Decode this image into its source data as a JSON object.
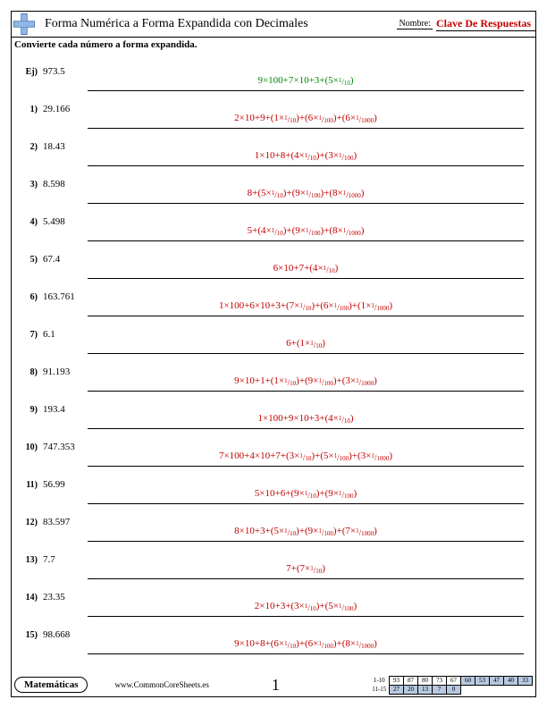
{
  "header": {
    "title": "Forma Numérica a Forma Expandida con Decimales",
    "name_label": "Nombre:",
    "answer_key": "Clave De Respuestas"
  },
  "instruction": "Convierte cada número a forma expandida.",
  "colors": {
    "example": "#008800",
    "answer": "#c00000",
    "border": "#000000",
    "shade": "#b8c8e0"
  },
  "rows": [
    {
      "label": "Ej)",
      "number": "973.5",
      "answer_html": "9×100+7×10+3+(5×<span class='frac'><span class='n'>1</span><span class='s'>/</span><span class='d'>10</span></span>)",
      "cls": "ans-example"
    },
    {
      "label": "1)",
      "number": "29.166",
      "answer_html": "2×10+9+(1×<span class='frac'><span class='n'>1</span><span class='s'>/</span><span class='d'>10</span></span>)+(6×<span class='frac'><span class='n'>1</span><span class='s'>/</span><span class='d'>100</span></span>)+(6×<span class='frac'><span class='n'>1</span><span class='s'>/</span><span class='d'>1000</span></span>)",
      "cls": "ans-red"
    },
    {
      "label": "2)",
      "number": "18.43",
      "answer_html": "1×10+8+(4×<span class='frac'><span class='n'>1</span><span class='s'>/</span><span class='d'>10</span></span>)+(3×<span class='frac'><span class='n'>1</span><span class='s'>/</span><span class='d'>100</span></span>)",
      "cls": "ans-red"
    },
    {
      "label": "3)",
      "number": "8.598",
      "answer_html": "8+(5×<span class='frac'><span class='n'>1</span><span class='s'>/</span><span class='d'>10</span></span>)+(9×<span class='frac'><span class='n'>1</span><span class='s'>/</span><span class='d'>100</span></span>)+(8×<span class='frac'><span class='n'>1</span><span class='s'>/</span><span class='d'>1000</span></span>)",
      "cls": "ans-red"
    },
    {
      "label": "4)",
      "number": "5.498",
      "answer_html": "5+(4×<span class='frac'><span class='n'>1</span><span class='s'>/</span><span class='d'>10</span></span>)+(9×<span class='frac'><span class='n'>1</span><span class='s'>/</span><span class='d'>100</span></span>)+(8×<span class='frac'><span class='n'>1</span><span class='s'>/</span><span class='d'>1000</span></span>)",
      "cls": "ans-red"
    },
    {
      "label": "5)",
      "number": "67.4",
      "answer_html": "6×10+7+(4×<span class='frac'><span class='n'>1</span><span class='s'>/</span><span class='d'>10</span></span>)",
      "cls": "ans-red"
    },
    {
      "label": "6)",
      "number": "163.761",
      "answer_html": "1×100+6×10+3+(7×<span class='frac'><span class='n'>1</span><span class='s'>/</span><span class='d'>10</span></span>)+(6×<span class='frac'><span class='n'>1</span><span class='s'>/</span><span class='d'>100</span></span>)+(1×<span class='frac'><span class='n'>1</span><span class='s'>/</span><span class='d'>1000</span></span>)",
      "cls": "ans-red"
    },
    {
      "label": "7)",
      "number": "6.1",
      "answer_html": "6+(1×<span class='frac'><span class='n'>1</span><span class='s'>/</span><span class='d'>10</span></span>)",
      "cls": "ans-red"
    },
    {
      "label": "8)",
      "number": "91.193",
      "answer_html": "9×10+1+(1×<span class='frac'><span class='n'>1</span><span class='s'>/</span><span class='d'>10</span></span>)+(9×<span class='frac'><span class='n'>1</span><span class='s'>/</span><span class='d'>100</span></span>)+(3×<span class='frac'><span class='n'>1</span><span class='s'>/</span><span class='d'>1000</span></span>)",
      "cls": "ans-red"
    },
    {
      "label": "9)",
      "number": "193.4",
      "answer_html": "1×100+9×10+3+(4×<span class='frac'><span class='n'>1</span><span class='s'>/</span><span class='d'>10</span></span>)",
      "cls": "ans-red"
    },
    {
      "label": "10)",
      "number": "747.353",
      "answer_html": "7×100+4×10+7+(3×<span class='frac'><span class='n'>1</span><span class='s'>/</span><span class='d'>10</span></span>)+(5×<span class='frac'><span class='n'>1</span><span class='s'>/</span><span class='d'>100</span></span>)+(3×<span class='frac'><span class='n'>1</span><span class='s'>/</span><span class='d'>1000</span></span>)",
      "cls": "ans-red"
    },
    {
      "label": "11)",
      "number": "56.99",
      "answer_html": "5×10+6+(9×<span class='frac'><span class='n'>1</span><span class='s'>/</span><span class='d'>10</span></span>)+(9×<span class='frac'><span class='n'>1</span><span class='s'>/</span><span class='d'>100</span></span>)",
      "cls": "ans-red"
    },
    {
      "label": "12)",
      "number": "83.597",
      "answer_html": "8×10+3+(5×<span class='frac'><span class='n'>1</span><span class='s'>/</span><span class='d'>10</span></span>)+(9×<span class='frac'><span class='n'>1</span><span class='s'>/</span><span class='d'>100</span></span>)+(7×<span class='frac'><span class='n'>1</span><span class='s'>/</span><span class='d'>1000</span></span>)",
      "cls": "ans-red"
    },
    {
      "label": "13)",
      "number": "7.7",
      "answer_html": "7+(7×<span class='frac'><span class='n'>1</span><span class='s'>/</span><span class='d'>10</span></span>)",
      "cls": "ans-red"
    },
    {
      "label": "14)",
      "number": "23.35",
      "answer_html": "2×10+3+(3×<span class='frac'><span class='n'>1</span><span class='s'>/</span><span class='d'>10</span></span>)+(5×<span class='frac'><span class='n'>1</span><span class='s'>/</span><span class='d'>100</span></span>)",
      "cls": "ans-red"
    },
    {
      "label": "15)",
      "number": "98.668",
      "answer_html": "9×10+8+(6×<span class='frac'><span class='n'>1</span><span class='s'>/</span><span class='d'>10</span></span>)+(6×<span class='frac'><span class='n'>1</span><span class='s'>/</span><span class='d'>100</span></span>)+(8×<span class='frac'><span class='n'>1</span><span class='s'>/</span><span class='d'>1000</span></span>)",
      "cls": "ans-red"
    }
  ],
  "footer": {
    "subject": "Matemáticas",
    "url": "www.CommonCoreSheets.es",
    "page": "1",
    "score": {
      "row1_label": "1-10",
      "row2_label": "11-15",
      "row1": [
        "93",
        "87",
        "80",
        "73",
        "67",
        "60",
        "53",
        "47",
        "40",
        "33"
      ],
      "row2": [
        "27",
        "20",
        "13",
        "7",
        "0"
      ],
      "row1_shade_from": 5,
      "row2_shade_all": true
    }
  }
}
